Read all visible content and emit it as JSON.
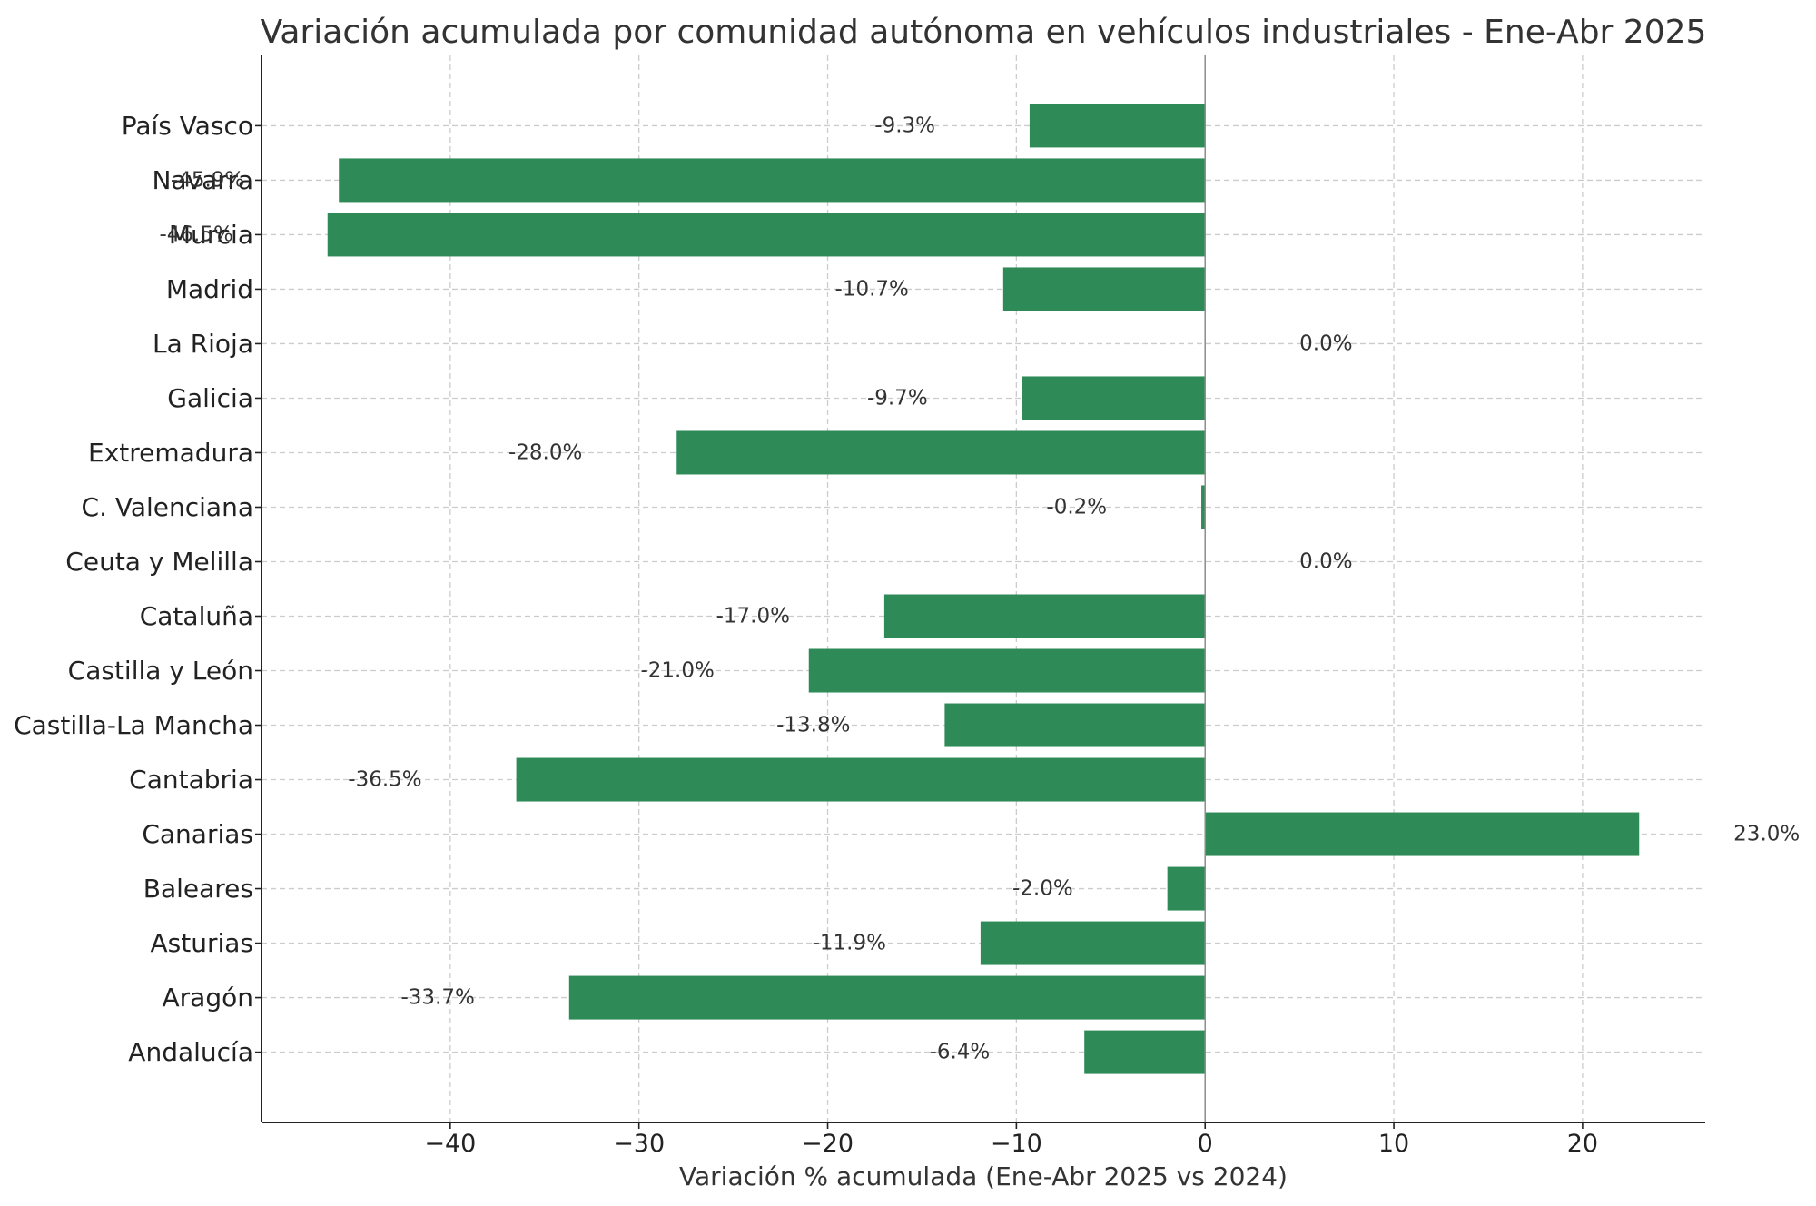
{
  "chart_data": {
    "type": "bar",
    "orientation": "horizontal",
    "title": "Variación acumulada por comunidad autónoma en vehículos industriales - Ene-Abr 2025",
    "xlabel": "Variación % acumulada (Ene-Abr 2025 vs 2024)",
    "ylabel": "",
    "categories": [
      "Andalucía",
      "Aragón",
      "Asturias",
      "Baleares",
      "Canarias",
      "Cantabria",
      "Castilla-La Mancha",
      "Castilla y León",
      "Cataluña",
      "Ceuta y Melilla",
      "C. Valenciana",
      "Extremadura",
      "Galicia",
      "La Rioja",
      "Madrid",
      "Murcia",
      "Navarra",
      "País Vasco"
    ],
    "values": [
      -6.4,
      -33.7,
      -11.9,
      -2.0,
      23.0,
      -36.5,
      -13.8,
      -21.0,
      -17.0,
      0.0,
      -0.2,
      -28.0,
      -9.7,
      0.0,
      -10.7,
      -46.5,
      -45.9,
      -9.3
    ],
    "data_labels": [
      "-6.4%",
      "-33.7%",
      "-11.9%",
      "-2.0%",
      "23.0%",
      "-36.5%",
      "-13.8%",
      "-21.0%",
      "-17.0%",
      "0.0%",
      "-0.2%",
      "-28.0%",
      "-9.7%",
      "0.0%",
      "-10.7%",
      "-46.5%",
      "-45.9%",
      "-9.3%"
    ],
    "xlim": [
      -50,
      26.5
    ],
    "xticks": [
      -40,
      -30,
      -20,
      -10,
      0,
      10,
      20
    ],
    "xtick_labels": [
      "−40",
      "−30",
      "−20",
      "−10",
      "0",
      "10",
      "20"
    ],
    "grid": true,
    "grid_style": "dashed",
    "zero_line": true,
    "colors": {
      "bar": "#2e8b57",
      "title": "#333333",
      "text": "#333333",
      "tick_text": "#222222",
      "axis": "#222222",
      "grid": "#cccccc",
      "zero_line": "#8c8c8c"
    }
  }
}
